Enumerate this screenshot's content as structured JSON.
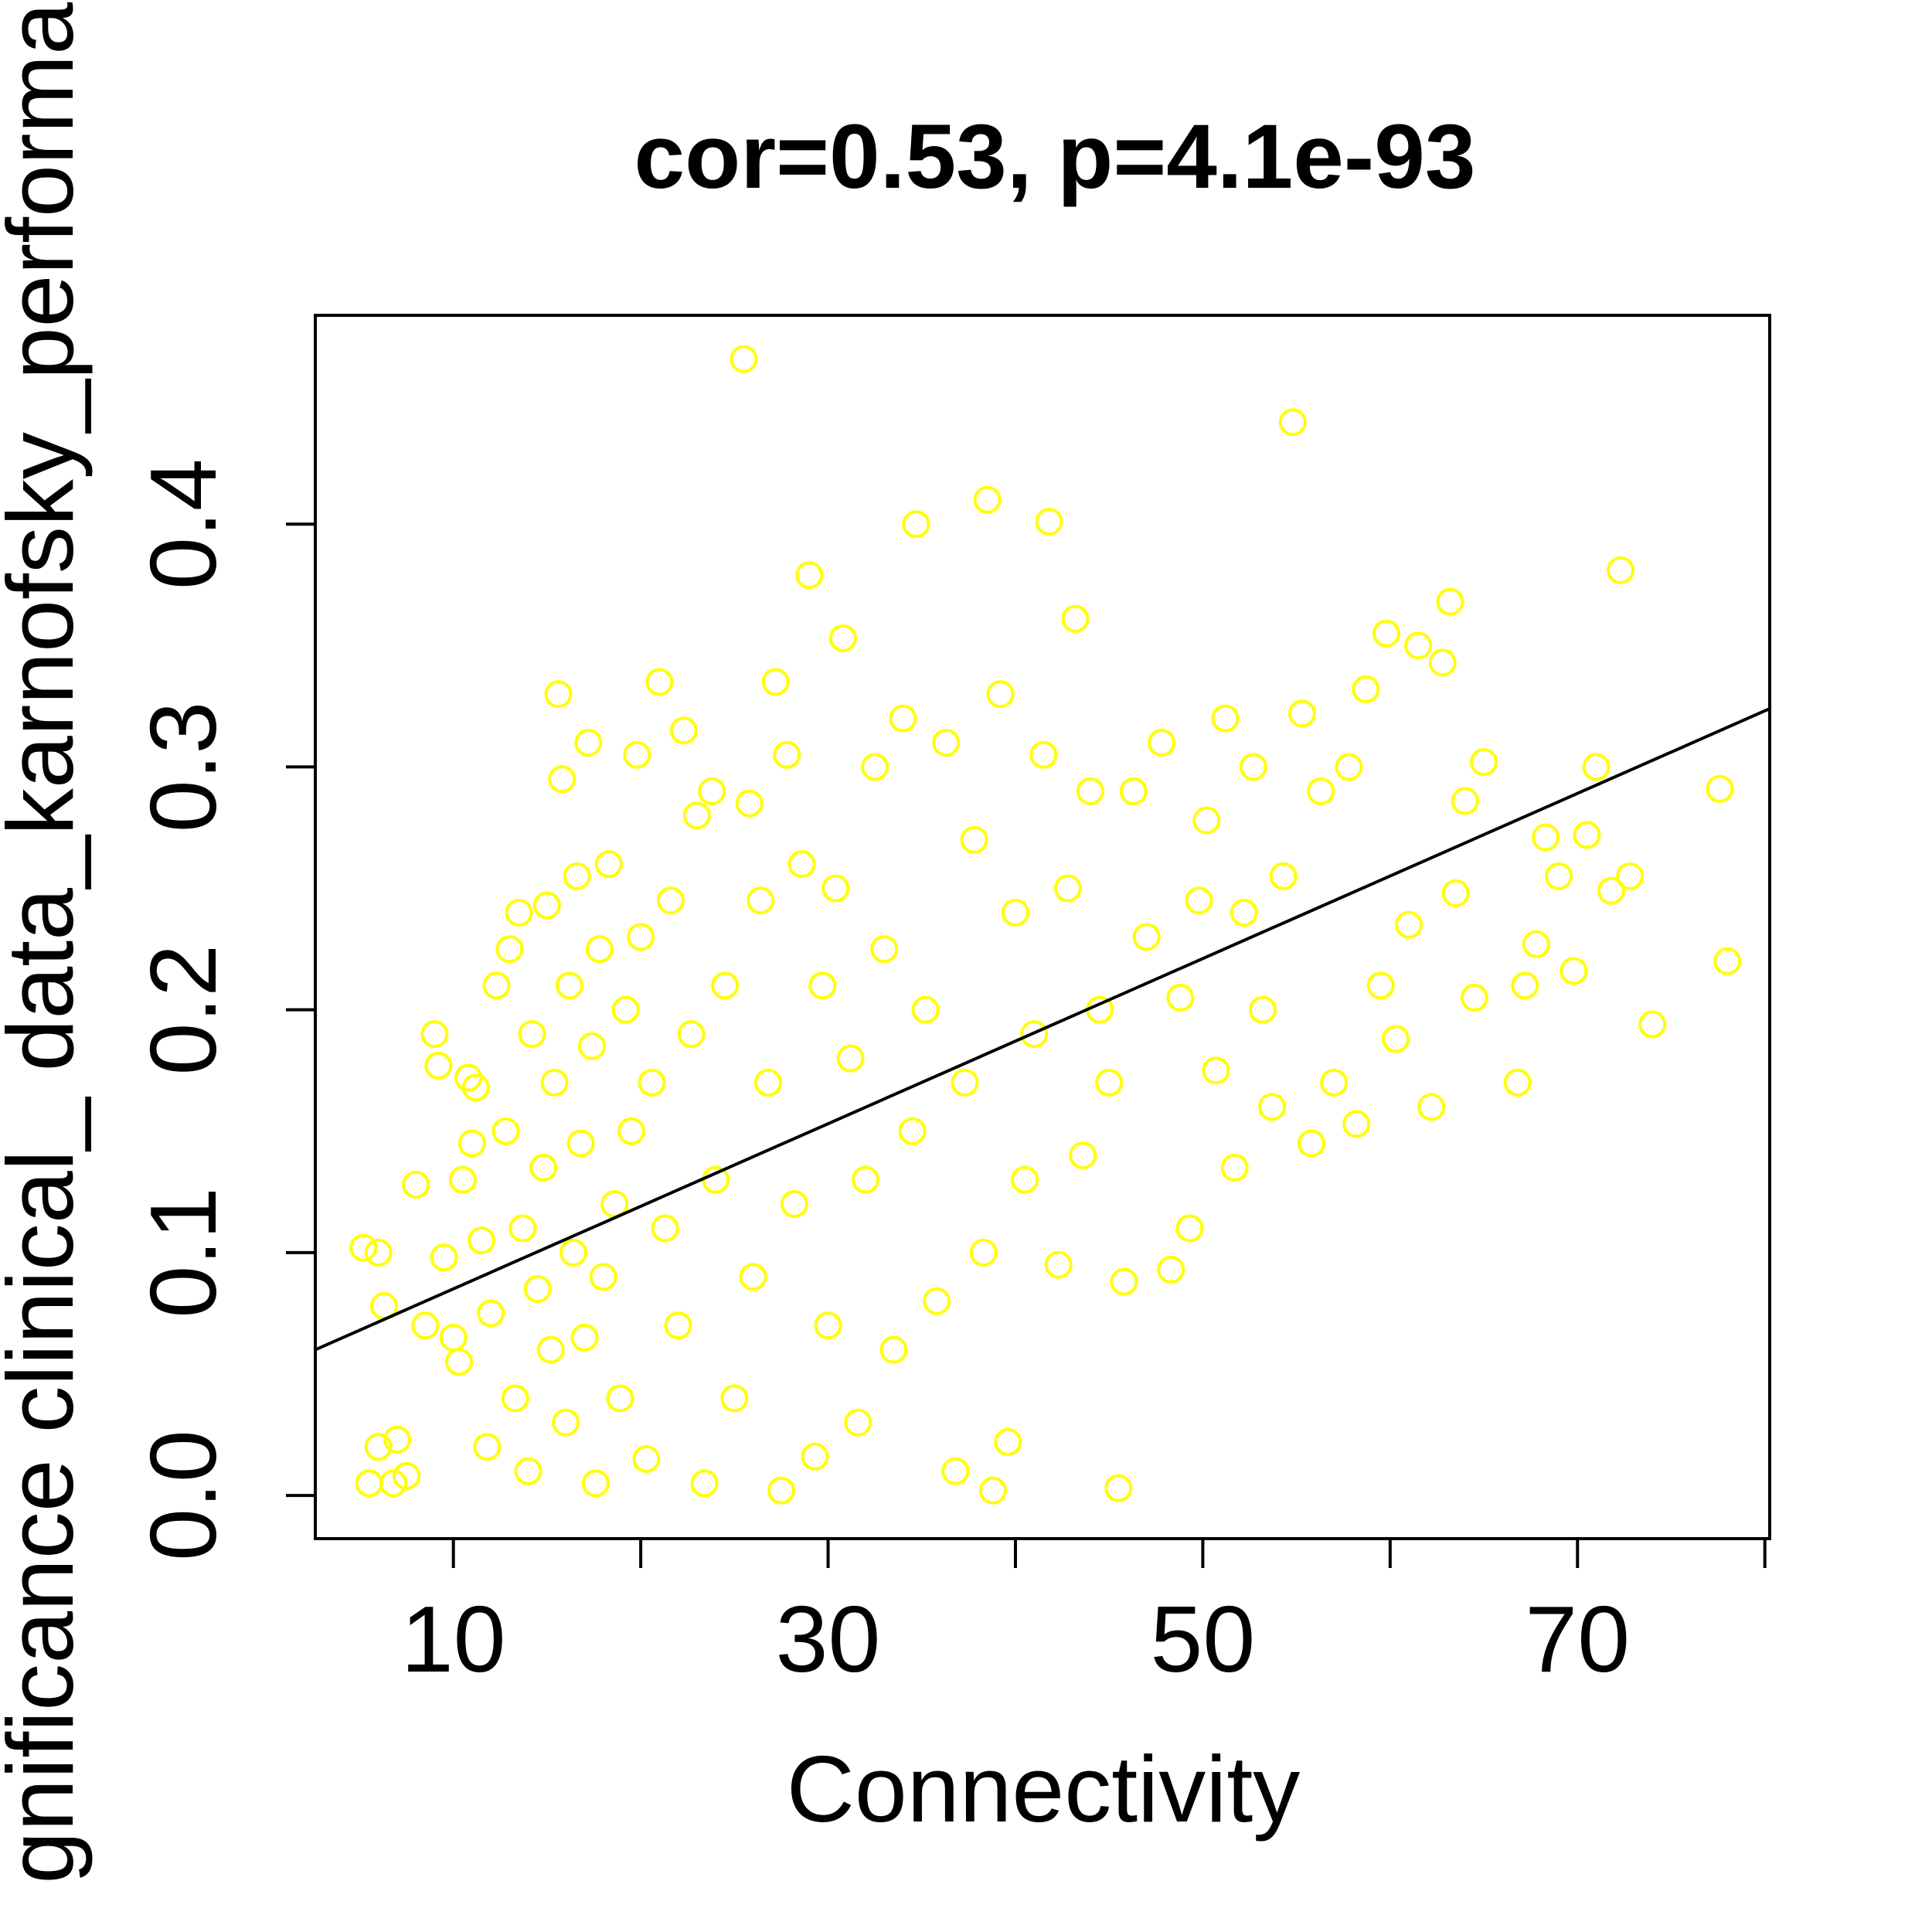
{
  "chart_data": {
    "type": "scatter",
    "title": "cor=0.53, p=4.1e-93",
    "x_label": "Connectivity",
    "y_label": "gnificance clinical_ data_karnofsky_performar",
    "color": "#ffff00",
    "xlim": [
      2.63,
      80.26
    ],
    "ylim": [
      -0.0178,
      0.486
    ],
    "xticks": [
      10,
      {
        "value": 20,
        "label": null
      },
      30,
      {
        "value": 40,
        "label": null
      },
      50,
      {
        "value": 60,
        "label": null
      },
      70,
      {
        "value": 80,
        "label": null
      }
    ],
    "yticks": [
      {
        "value": 0,
        "label": "0.0"
      },
      0.1,
      0.2,
      0.3,
      0.4
    ],
    "fit_line": {
      "x": [
        2.63,
        80.26
      ],
      "y": [
        0.06,
        0.324
      ],
      "color": "#000000"
    },
    "x": [
      5.2,
      6,
      6.3,
      5.5,
      6.8,
      7.5,
      6,
      7,
      8,
      8.5,
      9,
      9.2,
      9.5,
      10,
      10.3,
      10.5,
      10.8,
      11,
      11.2,
      11.5,
      11.8,
      12,
      12.3,
      12.8,
      13,
      13.3,
      13.5,
      13.7,
      14,
      14.2,
      14.5,
      14.8,
      15,
      15.2,
      15.4,
      15.6,
      15.8,
      16,
      16.2,
      16.4,
      16.6,
      16.8,
      17,
      17.2,
      17.4,
      17.6,
      17.8,
      18,
      18.3,
      18.6,
      18.9,
      19.2,
      19.5,
      19.8,
      20,
      20.3,
      20.6,
      21,
      21.3,
      21.6,
      22,
      22.3,
      22.7,
      23,
      23.4,
      23.8,
      24,
      24.5,
      25,
      25.5,
      25.8,
      26,
      26.4,
      26.8,
      27.2,
      27.5,
      27.8,
      28.2,
      28.6,
      29,
      29.3,
      29.7,
      30,
      30.4,
      30.8,
      31.2,
      31.6,
      32,
      32.5,
      33,
      33.5,
      34,
      34.5,
      34.7,
      35.2,
      35.8,
      36.3,
      36.8,
      37.3,
      37.8,
      38.3,
      38.5,
      38.8,
      39.2,
      39.6,
      40,
      40.5,
      41,
      41.5,
      41.8,
      42.3,
      42.8,
      43.2,
      43.6,
      44,
      44.5,
      45,
      45.5,
      45.8,
      46.3,
      47,
      47.8,
      48.3,
      48.8,
      49.3,
      49.8,
      50.2,
      50.7,
      51.2,
      51.7,
      52.2,
      52.7,
      53.2,
      53.7,
      54.3,
      54.8,
      55.3,
      55.8,
      56.3,
      57,
      57.8,
      58.2,
      58.7,
      59.5,
      59.8,
      60.3,
      61,
      61.5,
      62.2,
      62.8,
      63.2,
      63.5,
      64,
      64.5,
      65,
      66.8,
      67.2,
      67.8,
      68.3,
      69,
      69.8,
      70.5,
      71,
      71.8,
      72.3,
      72.8,
      74,
      77.6,
      78
    ],
    "values": [
      0.102,
      0.1,
      0.078,
      0.005,
      0.005,
      0.008,
      0.02,
      0.023,
      0.128,
      0.07,
      0.19,
      0.177,
      0.098,
      0.065,
      0.055,
      0.13,
      0.172,
      0.145,
      0.168,
      0.105,
      0.02,
      0.075,
      0.21,
      0.15,
      0.225,
      0.04,
      0.24,
      0.11,
      0.01,
      0.19,
      0.085,
      0.135,
      0.243,
      0.06,
      0.17,
      0.33,
      0.295,
      0.03,
      0.21,
      0.1,
      0.255,
      0.145,
      0.065,
      0.31,
      0.185,
      0.005,
      0.225,
      0.09,
      0.26,
      0.12,
      0.04,
      0.2,
      0.15,
      0.305,
      0.23,
      0.015,
      0.17,
      0.335,
      0.11,
      0.245,
      0.07,
      0.315,
      0.19,
      0.28,
      0.005,
      0.29,
      0.13,
      0.21,
      0.04,
      0.468,
      0.285,
      0.09,
      0.245,
      0.17,
      0.335,
      0.002,
      0.305,
      0.12,
      0.26,
      0.379,
      0.016,
      0.21,
      0.07,
      0.25,
      0.353,
      0.18,
      0.03,
      0.13,
      0.3,
      0.225,
      0.06,
      0.32,
      0.15,
      0.4,
      0.2,
      0.08,
      0.31,
      0.01,
      0.17,
      0.27,
      0.1,
      0.41,
      0.002,
      0.33,
      0.022,
      0.24,
      0.13,
      0.19,
      0.305,
      0.401,
      0.095,
      0.25,
      0.361,
      0.14,
      0.29,
      0.2,
      0.17,
      0.003,
      0.088,
      0.29,
      0.23,
      0.31,
      0.093,
      0.205,
      0.11,
      0.245,
      0.278,
      0.175,
      0.32,
      0.135,
      0.24,
      0.3,
      0.2,
      0.16,
      0.255,
      0.442,
      0.322,
      0.145,
      0.29,
      0.17,
      0.3,
      0.153,
      0.332,
      0.21,
      0.355,
      0.188,
      0.235,
      0.35,
      0.16,
      0.343,
      0.368,
      0.248,
      0.286,
      0.205,
      0.302,
      0.17,
      0.21,
      0.227,
      0.271,
      0.255,
      0.216,
      0.272,
      0.3,
      0.249,
      0.381,
      0.255,
      0.194,
      0.291,
      0.22
    ]
  }
}
